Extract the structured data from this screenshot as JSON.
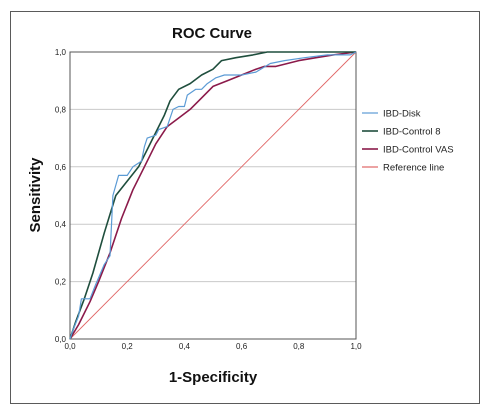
{
  "chart_data": {
    "type": "line",
    "title": "ROC Curve",
    "xlabel": "1-Specificity",
    "ylabel": "Sensitivity",
    "xlim": [
      0,
      1
    ],
    "ylim": [
      0,
      1
    ],
    "x_ticks": [
      "0,0",
      "0,2",
      "0,4",
      "0,6",
      "0,8",
      "1,0"
    ],
    "y_ticks": [
      "0,0",
      "0,2",
      "0,4",
      "0,6",
      "0,8",
      "1,0"
    ],
    "grid": "horizontal",
    "legend_position": "right",
    "series": [
      {
        "name": "IBD-Disk",
        "color": "#5b9bd5",
        "width": 1.2,
        "points": [
          [
            0,
            0
          ],
          [
            0.01,
            0.03
          ],
          [
            0.03,
            0.08
          ],
          [
            0.04,
            0.14
          ],
          [
            0.07,
            0.14
          ],
          [
            0.09,
            0.19
          ],
          [
            0.12,
            0.26
          ],
          [
            0.14,
            0.29
          ],
          [
            0.15,
            0.5
          ],
          [
            0.17,
            0.57
          ],
          [
            0.2,
            0.57
          ],
          [
            0.22,
            0.6
          ],
          [
            0.25,
            0.62
          ],
          [
            0.26,
            0.67
          ],
          [
            0.27,
            0.7
          ],
          [
            0.3,
            0.71
          ],
          [
            0.31,
            0.73
          ],
          [
            0.34,
            0.74
          ],
          [
            0.36,
            0.8
          ],
          [
            0.38,
            0.81
          ],
          [
            0.4,
            0.81
          ],
          [
            0.41,
            0.85
          ],
          [
            0.44,
            0.87
          ],
          [
            0.46,
            0.87
          ],
          [
            0.48,
            0.89
          ],
          [
            0.51,
            0.91
          ],
          [
            0.54,
            0.92
          ],
          [
            0.6,
            0.92
          ],
          [
            0.65,
            0.93
          ],
          [
            0.7,
            0.96
          ],
          [
            0.75,
            0.97
          ],
          [
            0.82,
            0.98
          ],
          [
            0.9,
            0.99
          ],
          [
            0.98,
            0.99
          ],
          [
            1.0,
            1.0
          ]
        ]
      },
      {
        "name": "IBD-Control 8",
        "color": "#1f4e3d",
        "width": 1.6,
        "points": [
          [
            0,
            0
          ],
          [
            0.02,
            0.06
          ],
          [
            0.05,
            0.14
          ],
          [
            0.08,
            0.23
          ],
          [
            0.12,
            0.37
          ],
          [
            0.16,
            0.5
          ],
          [
            0.2,
            0.55
          ],
          [
            0.24,
            0.6
          ],
          [
            0.27,
            0.66
          ],
          [
            0.3,
            0.72
          ],
          [
            0.33,
            0.78
          ],
          [
            0.35,
            0.83
          ],
          [
            0.38,
            0.87
          ],
          [
            0.42,
            0.89
          ],
          [
            0.46,
            0.92
          ],
          [
            0.5,
            0.94
          ],
          [
            0.53,
            0.97
          ],
          [
            0.58,
            0.98
          ],
          [
            0.64,
            0.99
          ],
          [
            0.69,
            1.0
          ],
          [
            0.8,
            1.0
          ],
          [
            0.9,
            1.0
          ],
          [
            1.0,
            1.0
          ]
        ]
      },
      {
        "name": "IBD-Control VAS",
        "color": "#8b1a4a",
        "width": 1.6,
        "points": [
          [
            0,
            0
          ],
          [
            0.03,
            0.05
          ],
          [
            0.07,
            0.13
          ],
          [
            0.1,
            0.2
          ],
          [
            0.14,
            0.3
          ],
          [
            0.18,
            0.42
          ],
          [
            0.22,
            0.52
          ],
          [
            0.26,
            0.6
          ],
          [
            0.3,
            0.68
          ],
          [
            0.34,
            0.74
          ],
          [
            0.38,
            0.77
          ],
          [
            0.42,
            0.8
          ],
          [
            0.46,
            0.84
          ],
          [
            0.5,
            0.88
          ],
          [
            0.55,
            0.9
          ],
          [
            0.6,
            0.92
          ],
          [
            0.65,
            0.94
          ],
          [
            0.68,
            0.95
          ],
          [
            0.72,
            0.95
          ],
          [
            0.76,
            0.96
          ],
          [
            0.8,
            0.97
          ],
          [
            0.86,
            0.98
          ],
          [
            0.92,
            0.99
          ],
          [
            1.0,
            1.0
          ]
        ]
      },
      {
        "name": "Reference line",
        "color": "#e06666",
        "width": 0.9,
        "points": [
          [
            0,
            0
          ],
          [
            1,
            1
          ]
        ]
      }
    ]
  }
}
